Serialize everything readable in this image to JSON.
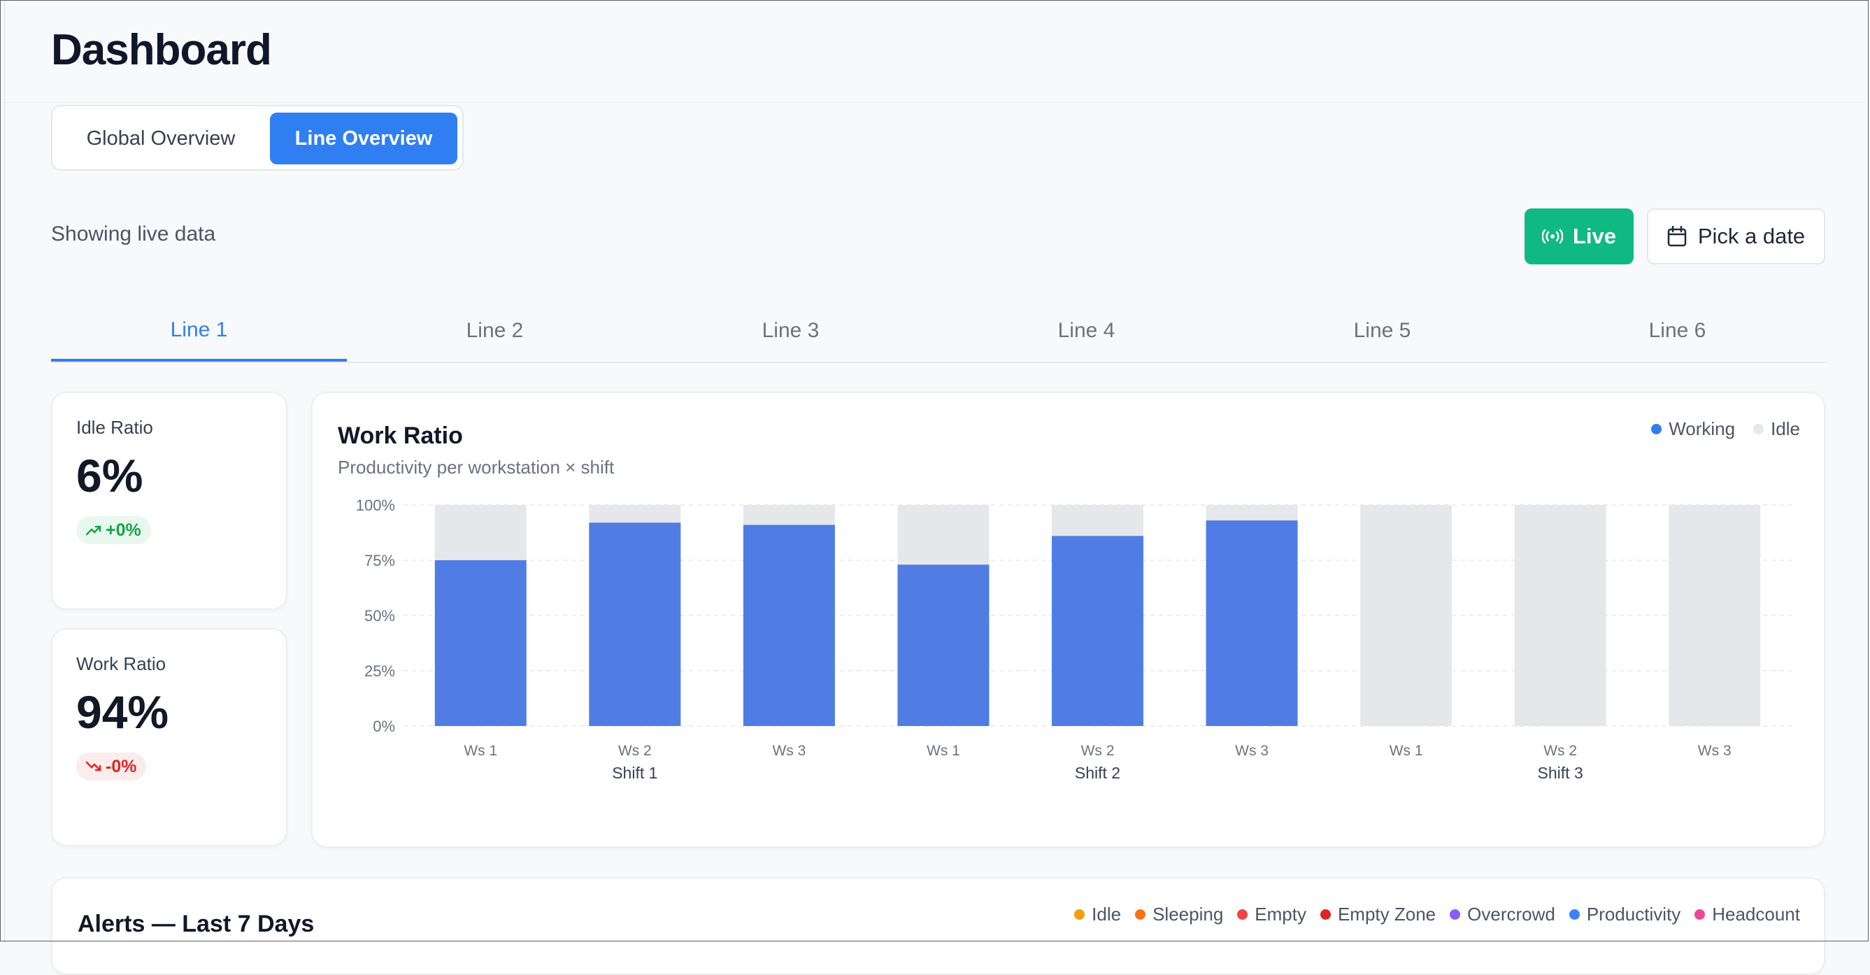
{
  "header": {
    "title": "Dashboard"
  },
  "view_switch": {
    "global_label": "Global Overview",
    "line_label": "Line Overview",
    "active": "Line Overview"
  },
  "status": {
    "text": "Showing live data"
  },
  "actions": {
    "live_label": "Live",
    "live_color": "#10b981",
    "date_label": "Pick a date"
  },
  "line_tabs": [
    {
      "label": "Line 1",
      "active": true
    },
    {
      "label": "Line 2",
      "active": false
    },
    {
      "label": "Line 3",
      "active": false
    },
    {
      "label": "Line 4",
      "active": false
    },
    {
      "label": "Line 5",
      "active": false
    },
    {
      "label": "Line 6",
      "active": false
    }
  ],
  "kpis": {
    "idle": {
      "label": "Idle Ratio",
      "value": "6%",
      "change": "+0%",
      "trend": "up"
    },
    "work": {
      "label": "Work Ratio",
      "value": "94%",
      "change": "-0%",
      "trend": "down"
    }
  },
  "work_ratio_card": {
    "title": "Work Ratio",
    "subtitle": "Productivity per workstation × shift",
    "legend": [
      {
        "name": "Working",
        "color": "#2f7ff2"
      },
      {
        "name": "Idle",
        "color": "#e5e7eb"
      }
    ]
  },
  "chart_data": {
    "type": "bar",
    "stacked": true,
    "categories": [
      "Ws 1",
      "Ws 2",
      "Ws 3",
      "Ws 1",
      "Ws 2",
      "Ws 3",
      "Ws 1",
      "Ws 2",
      "Ws 3"
    ],
    "groups": [
      {
        "label": "Shift 1",
        "categories": [
          "Ws 1",
          "Ws 2",
          "Ws 3"
        ]
      },
      {
        "label": "Shift 2",
        "categories": [
          "Ws 1",
          "Ws 2",
          "Ws 3"
        ]
      },
      {
        "label": "Shift 3",
        "categories": [
          "Ws 1",
          "Ws 2",
          "Ws 3"
        ]
      }
    ],
    "series": [
      {
        "name": "Working",
        "color": "#4f7de3",
        "values": [
          75,
          92,
          91,
          73,
          86,
          93,
          0,
          0,
          0
        ]
      },
      {
        "name": "Idle",
        "color": "#e5e7eb",
        "values": [
          25,
          8,
          9,
          27,
          14,
          7,
          100,
          100,
          100
        ]
      }
    ],
    "y_ticks": [
      "0%",
      "25%",
      "50%",
      "75%",
      "100%"
    ],
    "ylim": [
      0,
      100
    ],
    "grid": true,
    "legend_position": "top-right"
  },
  "alerts_card": {
    "title": "Alerts — Last 7 Days",
    "legend": [
      {
        "name": "Idle",
        "color": "#f59e0b"
      },
      {
        "name": "Sleeping",
        "color": "#f97316"
      },
      {
        "name": "Empty",
        "color": "#ef4444"
      },
      {
        "name": "Empty Zone",
        "color": "#dc2626"
      },
      {
        "name": "Overcrowd",
        "color": "#8b5cf6"
      },
      {
        "name": "Productivity",
        "color": "#3b82f6"
      },
      {
        "name": "Headcount",
        "color": "#ec4899"
      }
    ]
  }
}
